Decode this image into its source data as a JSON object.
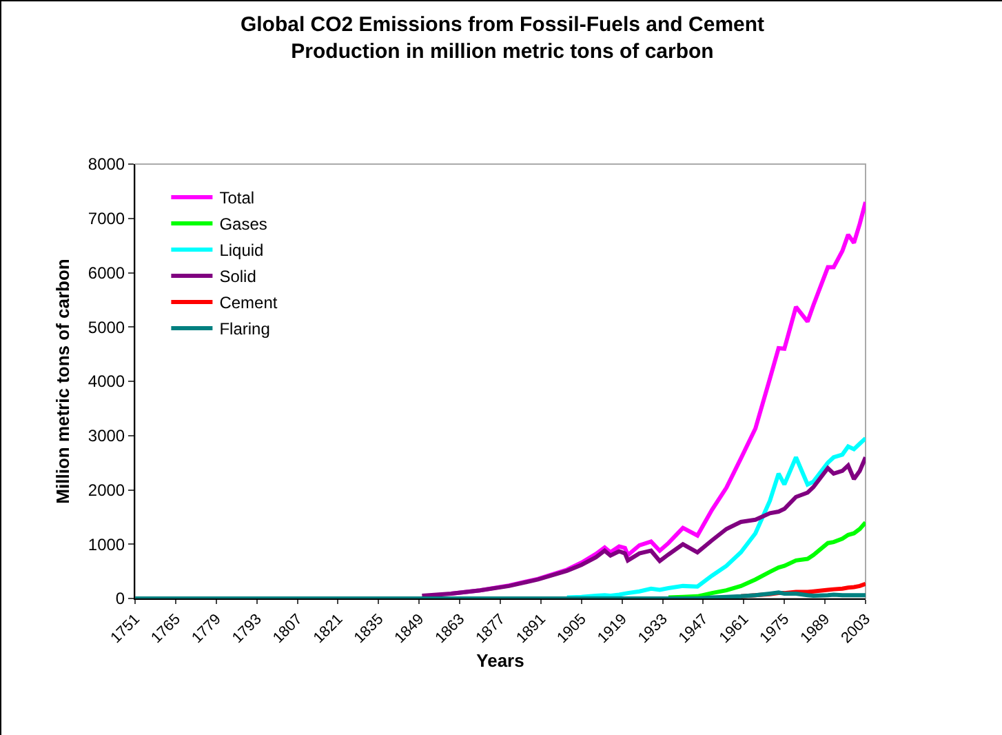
{
  "chart_data": {
    "type": "line",
    "title": "Global CO2 Emissions from Fossil-Fuels and Cement Production in million metric tons of carbon",
    "xlabel": "Years",
    "ylabel": "Million metric tons of carbon",
    "x": [
      1751,
      1800,
      1850,
      1860,
      1870,
      1880,
      1890,
      1900,
      1905,
      1910,
      1913,
      1915,
      1918,
      1920,
      1921,
      1925,
      1929,
      1932,
      1935,
      1940,
      1945,
      1950,
      1955,
      1960,
      1965,
      1970,
      1973,
      1975,
      1979,
      1983,
      1985,
      1990,
      1992,
      1995,
      1997,
      1999,
      2001,
      2003
    ],
    "series": [
      {
        "name": "Total",
        "color": "#ff00ff",
        "values": [
          null,
          null,
          null,
          90,
          150,
          240,
          360,
          530,
          660,
          820,
          940,
          850,
          960,
          930,
          800,
          980,
          1050,
          880,
          1020,
          1300,
          1160,
          1630,
          2040,
          2580,
          3130,
          4050,
          4610,
          4600,
          5370,
          5100,
          5400,
          6100,
          6100,
          6400,
          6700,
          6550,
          6900,
          7300
        ]
      },
      {
        "name": "Gases",
        "color": "#00ff00",
        "values": [
          null,
          null,
          null,
          null,
          null,
          null,
          null,
          null,
          null,
          null,
          null,
          null,
          null,
          null,
          null,
          null,
          null,
          null,
          20,
          30,
          40,
          100,
          150,
          230,
          350,
          490,
          570,
          600,
          700,
          730,
          800,
          1020,
          1040,
          1100,
          1170,
          1200,
          1280,
          1400
        ]
      },
      {
        "name": "Liquid",
        "color": "#00ffff",
        "values": [
          null,
          null,
          null,
          null,
          null,
          null,
          null,
          20,
          30,
          50,
          60,
          50,
          70,
          90,
          100,
          130,
          180,
          160,
          190,
          230,
          220,
          420,
          600,
          850,
          1200,
          1800,
          2300,
          2100,
          2600,
          2100,
          2150,
          2500,
          2600,
          2650,
          2800,
          2750,
          2850,
          2950
        ]
      },
      {
        "name": "Solid",
        "color": "#800080",
        "values": [
          null,
          null,
          50,
          90,
          150,
          230,
          350,
          510,
          620,
          760,
          880,
          790,
          870,
          830,
          700,
          830,
          880,
          690,
          810,
          1000,
          850,
          1070,
          1280,
          1410,
          1450,
          1570,
          1600,
          1650,
          1870,
          1950,
          2050,
          2400,
          2300,
          2350,
          2450,
          2200,
          2350,
          2600
        ]
      },
      {
        "name": "Cement",
        "color": "#ff0000",
        "values": [
          null,
          null,
          null,
          null,
          null,
          null,
          null,
          null,
          null,
          null,
          null,
          null,
          null,
          null,
          null,
          null,
          null,
          null,
          null,
          null,
          null,
          null,
          null,
          40,
          60,
          80,
          100,
          100,
          120,
          120,
          130,
          160,
          170,
          180,
          200,
          210,
          230,
          270
        ]
      },
      {
        "name": "Flaring",
        "color": "#008080",
        "values": [
          0,
          0,
          0,
          0,
          0,
          0,
          0,
          0,
          0,
          0,
          0,
          0,
          0,
          0,
          0,
          0,
          0,
          0,
          0,
          0,
          0,
          20,
          30,
          40,
          60,
          90,
          110,
          90,
          90,
          60,
          50,
          60,
          70,
          60,
          60,
          60,
          60,
          60
        ]
      }
    ],
    "xlim": [
      1751,
      2003
    ],
    "xticks": [
      1751,
      1765,
      1779,
      1793,
      1807,
      1821,
      1835,
      1849,
      1863,
      1877,
      1891,
      1905,
      1919,
      1933,
      1947,
      1961,
      1975,
      1989,
      2003
    ],
    "ylim": [
      0,
      8000
    ],
    "yticks": [
      0,
      1000,
      2000,
      3000,
      4000,
      5000,
      6000,
      7000,
      8000
    ],
    "grid": false,
    "legend": "top left",
    "marker": "none",
    "line_style": "solid"
  }
}
